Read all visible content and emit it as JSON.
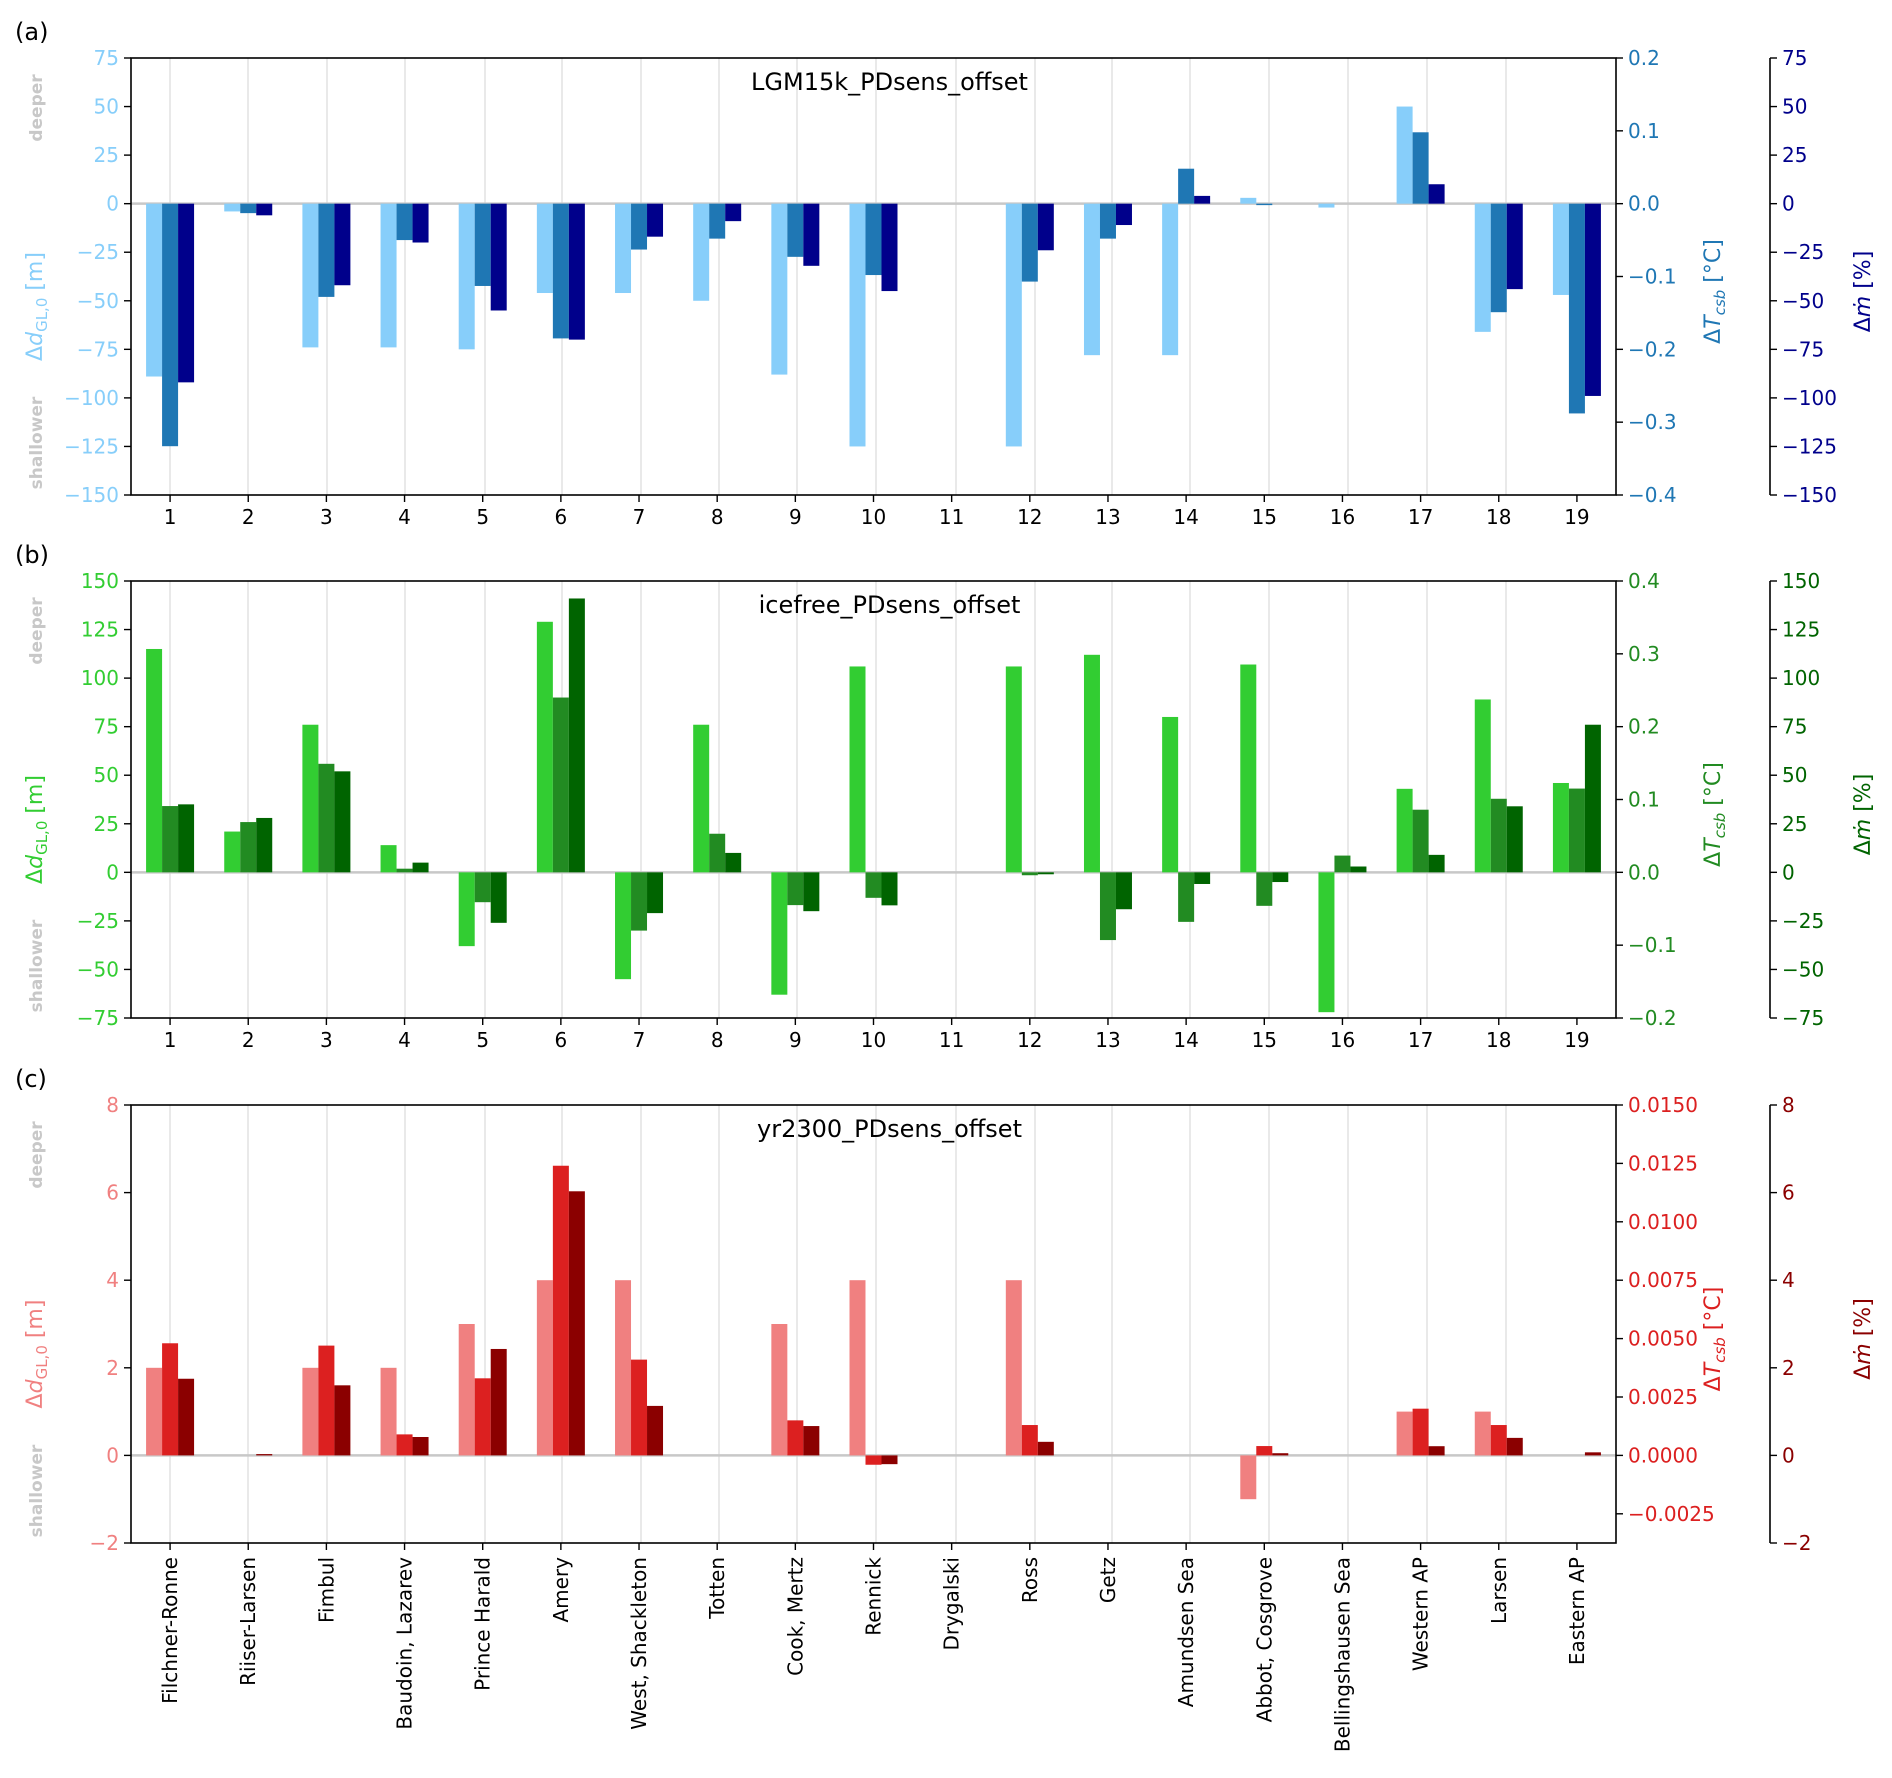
{
  "figure": {
    "categories_numeric": [
      "1",
      "2",
      "3",
      "4",
      "5",
      "6",
      "7",
      "8",
      "9",
      "10",
      "11",
      "12",
      "13",
      "14",
      "15",
      "16",
      "17",
      "18",
      "19"
    ],
    "categories_names": [
      "Filchner-Ronne",
      "Riiser-Larsen",
      "Fimbul",
      "Baudoin, Lazarev",
      "Prince Harald",
      "Amery",
      "West, Shackleton",
      "Totten",
      "Cook, Mertz",
      "Rennick",
      "Drygalski",
      "Ross",
      "Getz",
      "Amundsen Sea",
      "Abbot, Cosgrove",
      "Bellingshausen Sea",
      "Western AP",
      "Larsen",
      "Eastern AP"
    ],
    "side_label_top": "deeper",
    "side_label_bottom": "shallower"
  },
  "chart_data": [
    {
      "type": "bar",
      "panel_label": "(a)",
      "title": "LGM15k_PDsens_offset",
      "categories": [
        "1",
        "2",
        "3",
        "4",
        "5",
        "6",
        "7",
        "8",
        "9",
        "10",
        "11",
        "12",
        "13",
        "14",
        "15",
        "16",
        "17",
        "18",
        "19"
      ],
      "ylabel_left": "Δd_GL,0 [m]",
      "ylabel_right1": "ΔT_csb [°C]",
      "ylabel_right2": "Δṁ [%]",
      "ylim_left": [
        -150,
        75
      ],
      "yticks_left": [
        75,
        50,
        25,
        0,
        -25,
        -50,
        -75,
        -100,
        -125,
        -150
      ],
      "ylim_right1": [
        -0.4,
        0.2
      ],
      "yticks_right1": [
        "0.2",
        "0.1",
        "0.0",
        "-0.1",
        "-0.2",
        "-0.3",
        "-0.4"
      ],
      "ylim_right2": [
        -150,
        75
      ],
      "yticks_right2": [
        75,
        50,
        25,
        0,
        -25,
        -50,
        -75,
        -100,
        -125,
        -150
      ],
      "colors": {
        "dGL": "#87cefa",
        "dT": "#1f77b4",
        "dm": "#00008b"
      },
      "series": [
        {
          "name": "dGL",
          "axis": "left",
          "values": [
            -89,
            -4,
            -74,
            -74,
            -75,
            -46,
            -46,
            -50,
            -88,
            -125,
            0,
            -125,
            -78,
            -78,
            3,
            -2,
            50,
            -66,
            -47
          ]
        },
        {
          "name": "dT",
          "axis": "right1",
          "values": [
            -0.333,
            -0.013,
            -0.128,
            -0.05,
            -0.113,
            -0.185,
            -0.063,
            -0.048,
            -0.073,
            -0.098,
            0,
            -0.107,
            -0.048,
            0.048,
            -0.002,
            0,
            0.098,
            -0.149,
            -0.288
          ]
        },
        {
          "name": "dm",
          "axis": "right2",
          "values": [
            -92,
            -6,
            -42,
            -20,
            -55,
            -70,
            -17,
            -9,
            -32,
            -45,
            0,
            -24,
            -11,
            4,
            0,
            0,
            10,
            -44,
            -99
          ]
        }
      ]
    },
    {
      "type": "bar",
      "panel_label": "(b)",
      "title": "icefree_PDsens_offset",
      "categories": [
        "1",
        "2",
        "3",
        "4",
        "5",
        "6",
        "7",
        "8",
        "9",
        "10",
        "11",
        "12",
        "13",
        "14",
        "15",
        "16",
        "17",
        "18",
        "19"
      ],
      "ylabel_left": "Δd_GL,0 [m]",
      "ylabel_right1": "ΔT_csb [°C]",
      "ylabel_right2": "Δṁ [%]",
      "ylim_left": [
        -75,
        150
      ],
      "yticks_left": [
        150,
        125,
        100,
        75,
        50,
        25,
        0,
        -25,
        -50,
        -75
      ],
      "ylim_right1": [
        -0.2,
        0.4
      ],
      "yticks_right1": [
        "0.4",
        "0.3",
        "0.2",
        "0.1",
        "0.0",
        "-0.1",
        "-0.2"
      ],
      "ylim_right2": [
        -75,
        150
      ],
      "yticks_right2": [
        150,
        125,
        100,
        75,
        50,
        25,
        0,
        -25,
        -50,
        -75
      ],
      "colors": {
        "dGL": "#32cd32",
        "dT": "#228b22",
        "dm": "#006400"
      },
      "series": [
        {
          "name": "dGL",
          "axis": "left",
          "values": [
            115,
            21,
            76,
            14,
            -38,
            129,
            -55,
            76,
            -63,
            106,
            0,
            106,
            112,
            80,
            107,
            -72,
            43,
            89,
            46
          ]
        },
        {
          "name": "dT",
          "axis": "right1",
          "values": [
            0.091,
            0.069,
            0.149,
            0.005,
            -0.041,
            0.24,
            -0.08,
            0.053,
            -0.045,
            -0.035,
            0,
            -0.004,
            -0.093,
            -0.068,
            -0.046,
            0.023,
            0.086,
            0.101,
            0.115
          ]
        },
        {
          "name": "dm",
          "axis": "right2",
          "values": [
            35,
            28,
            52,
            5,
            -26,
            141,
            -21,
            10,
            -20,
            -17,
            0,
            -1,
            -19,
            -6,
            -5,
            3,
            9,
            34,
            76
          ]
        }
      ]
    },
    {
      "type": "bar",
      "panel_label": "(c)",
      "title": "yr2300_PDsens_offset",
      "categories": [
        "Filchner-Ronne",
        "Riiser-Larsen",
        "Fimbul",
        "Baudoin, Lazarev",
        "Prince Harald",
        "Amery",
        "West, Shackleton",
        "Totten",
        "Cook, Mertz",
        "Rennick",
        "Drygalski",
        "Ross",
        "Getz",
        "Amundsen Sea",
        "Abbot, Cosgrove",
        "Bellingshausen Sea",
        "Western AP",
        "Larsen",
        "Eastern AP"
      ],
      "ylabel_left": "Δd_GL,0 [m]",
      "ylabel_right1": "ΔT_csb [°C]",
      "ylabel_right2": "Δṁ [%]",
      "ylim_left": [
        -2,
        8
      ],
      "yticks_left": [
        8,
        6,
        4,
        2,
        0,
        -2
      ],
      "ylim_right1": [
        -0.00375,
        0.015
      ],
      "yticks_right1": [
        "0.0150",
        "0.0125",
        "0.0100",
        "0.0075",
        "0.0050",
        "0.0025",
        "0.0000",
        "-0.0025"
      ],
      "ylim_right2": [
        -2,
        8
      ],
      "yticks_right2": [
        8,
        6,
        4,
        2,
        0,
        -2
      ],
      "colors": {
        "dGL": "#f08080",
        "dT": "#dc2020",
        "dm": "#8b0000"
      },
      "series": [
        {
          "name": "dGL",
          "axis": "left",
          "values": [
            2,
            0,
            2,
            2,
            3,
            4,
            4,
            0,
            3,
            4,
            0,
            4,
            0,
            0,
            -1,
            0,
            1,
            1,
            0
          ]
        },
        {
          "name": "dT",
          "axis": "right1",
          "values": [
            0.0048,
            0,
            0.0047,
            0.0009,
            0.0033,
            0.0124,
            0.0041,
            0,
            0.0015,
            -0.0004,
            0,
            0.0013,
            0,
            0,
            0.0004,
            0,
            0.002,
            0.0013,
            0
          ]
        },
        {
          "name": "dm",
          "axis": "right2",
          "values": [
            1.75,
            0.03,
            1.6,
            0.42,
            2.43,
            6.03,
            1.13,
            0,
            0.67,
            -0.2,
            0,
            0.31,
            0,
            0,
            0.05,
            0,
            0.21,
            0.4,
            0.07
          ]
        }
      ]
    }
  ]
}
